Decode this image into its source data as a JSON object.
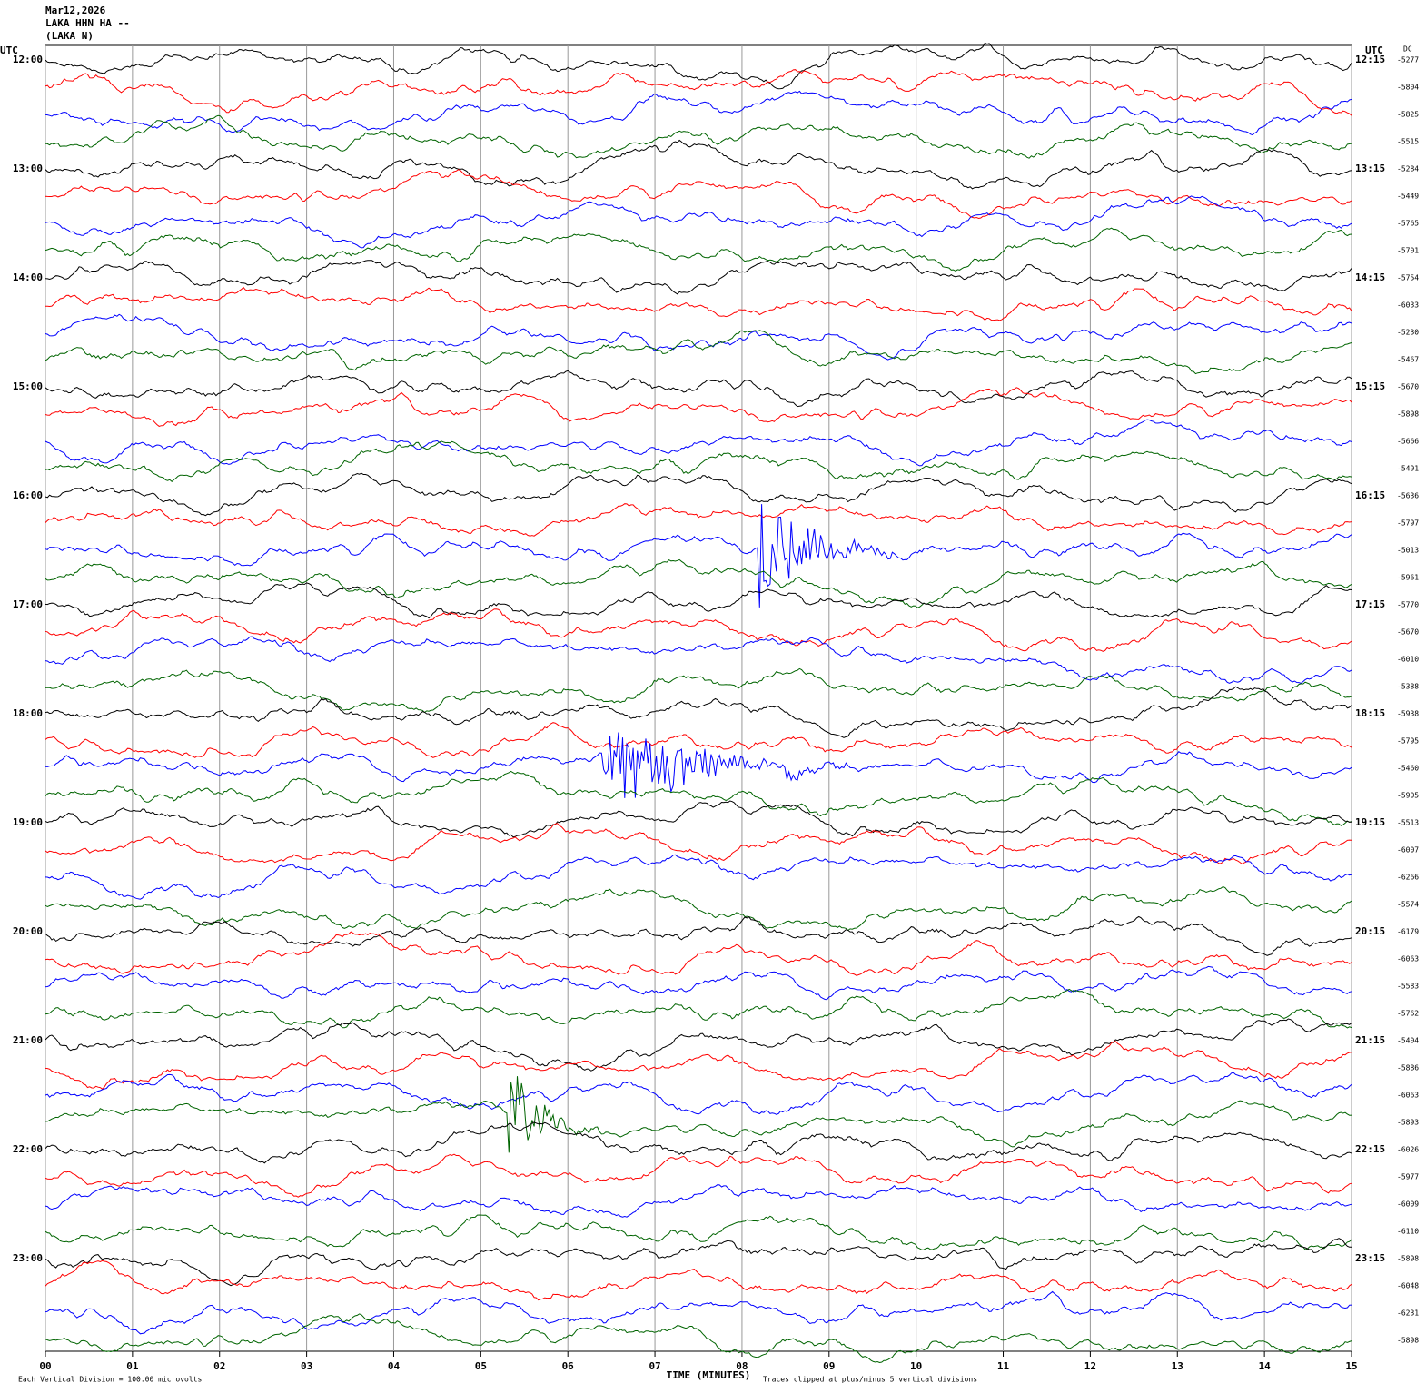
{
  "chart_data": {
    "type": "helicorder",
    "title_lines": [
      "Mar12,2026",
      "LAKA HHN HA --",
      "(LAKA N)"
    ],
    "left_axis_label": "UTC",
    "right_axis_label": "UTC",
    "dc_label": "DC",
    "hour_labels": [
      "12:00",
      "13:00",
      "14:00",
      "15:00",
      "16:00",
      "17:00",
      "18:00",
      "19:00",
      "20:00",
      "21:00",
      "22:00",
      "23:00"
    ],
    "quarter_labels": [
      "12:15",
      "13:15",
      "14:15",
      "15:15",
      "16:15",
      "17:15",
      "18:15",
      "19:15",
      "20:15",
      "21:15",
      "22:15",
      "23:15"
    ],
    "dc": [
      -5277,
      -5804,
      -5825,
      -5515,
      -5284,
      -5449,
      -5765,
      -5701,
      -5754,
      -6033,
      -5230,
      -5467,
      -5670,
      -5898,
      -5666,
      -5491,
      -5636,
      -5797,
      -5013,
      -5961,
      -5770,
      -5670,
      -6010,
      -5388,
      -5938,
      -5795,
      -5460,
      -5905,
      -5513,
      -6007,
      -6266,
      -5574,
      -6179,
      -6063,
      -5583,
      -5762,
      -5404,
      -5886,
      -6063,
      -5893,
      -6026,
      -5977,
      -6009,
      -6110,
      -5898,
      -6048,
      -6231,
      -5898
    ],
    "colors": [
      "#000000",
      "#ff0000",
      "#0000ff",
      "#006400"
    ],
    "xlabel": "TIME (MINUTES)",
    "xlim": [
      0,
      15
    ],
    "xticks": [
      {
        "value": 0,
        "label": "00"
      },
      {
        "value": 1,
        "label": "01"
      },
      {
        "value": 2,
        "label": "02"
      },
      {
        "value": 3,
        "label": "03"
      },
      {
        "value": 4,
        "label": "04"
      },
      {
        "value": 5,
        "label": "05"
      },
      {
        "value": 6,
        "label": "06"
      },
      {
        "value": 7,
        "label": "07"
      },
      {
        "value": 8,
        "label": "08"
      },
      {
        "value": 9,
        "label": "09"
      },
      {
        "value": 10,
        "label": "10"
      },
      {
        "value": 11,
        "label": "11"
      },
      {
        "value": 12,
        "label": "12"
      },
      {
        "value": 13,
        "label": "13"
      },
      {
        "value": 14,
        "label": "14"
      },
      {
        "value": 15,
        "label": "15"
      }
    ],
    "scale_note": "Each Vertical Division =  100.00 microvolts",
    "clip_note": "Traces clipped at plus/minus 5 vertical divisions",
    "events": [
      {
        "trace": 18,
        "start": 8.2,
        "end": 10.2
      },
      {
        "trace": 26,
        "start": 6.4,
        "end": 9.5
      },
      {
        "trace": 39,
        "start": 5.3,
        "end": 6.5
      }
    ]
  }
}
